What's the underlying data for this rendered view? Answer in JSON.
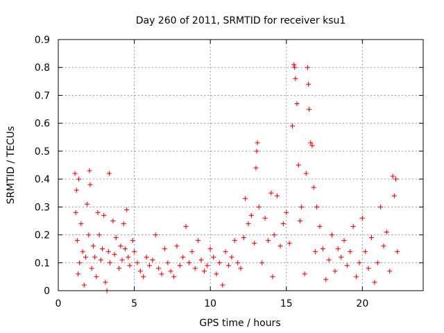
{
  "chart_data": {
    "type": "scatter",
    "title": "Day 260 of 2011, SRMTID for receiver ksu1",
    "xlabel": "GPS time / hours",
    "ylabel": "SRMTID / TECUs",
    "xlim": [
      0,
      24
    ],
    "ylim": [
      0,
      0.9
    ],
    "xticks": [
      0,
      5,
      10,
      15,
      20
    ],
    "yticks": [
      0,
      0.1,
      0.2,
      0.3,
      0.4,
      0.5,
      0.6,
      0.7,
      0.8,
      0.9
    ],
    "xtick_labels": [
      "0",
      "5",
      "10",
      "15",
      "20"
    ],
    "ytick_labels": [
      "0",
      "0.1",
      "0.2",
      "0.3",
      "0.4",
      "0.5",
      "0.6",
      "0.7",
      "0.8",
      "0.9"
    ],
    "grid": true,
    "marker": "+",
    "marker_color": "#ff0000",
    "series": [
      {
        "name": "SRMTID",
        "points": [
          [
            1.1,
            0.42
          ],
          [
            1.15,
            0.28
          ],
          [
            1.2,
            0.36
          ],
          [
            1.25,
            0.18
          ],
          [
            1.3,
            0.06
          ],
          [
            1.35,
            0.4
          ],
          [
            1.4,
            0.1
          ],
          [
            1.5,
            0.24
          ],
          [
            1.6,
            0.14
          ],
          [
            1.7,
            0.02
          ],
          [
            1.8,
            0.12
          ],
          [
            1.9,
            0.31
          ],
          [
            2.0,
            0.2
          ],
          [
            2.05,
            0.43
          ],
          [
            2.1,
            0.38
          ],
          [
            2.2,
            0.08
          ],
          [
            2.3,
            0.16
          ],
          [
            2.4,
            0.12
          ],
          [
            2.5,
            0.05
          ],
          [
            2.6,
            0.28
          ],
          [
            2.7,
            0.2
          ],
          [
            2.8,
            0.11
          ],
          [
            2.9,
            0.15
          ],
          [
            3.0,
            0.27
          ],
          [
            3.1,
            0.03
          ],
          [
            3.2,
            0.0
          ],
          [
            3.3,
            0.14
          ],
          [
            3.35,
            0.42
          ],
          [
            3.4,
            0.1
          ],
          [
            3.6,
            0.25
          ],
          [
            3.7,
            0.13
          ],
          [
            3.8,
            0.19
          ],
          [
            4.0,
            0.08
          ],
          [
            4.1,
            0.16
          ],
          [
            4.2,
            0.11
          ],
          [
            4.3,
            0.24
          ],
          [
            4.4,
            0.15
          ],
          [
            4.5,
            0.29
          ],
          [
            4.6,
            0.12
          ],
          [
            4.7,
            0.09
          ],
          [
            4.9,
            0.18
          ],
          [
            5.0,
            0.14
          ],
          [
            5.2,
            0.1
          ],
          [
            5.4,
            0.07
          ],
          [
            5.6,
            0.05
          ],
          [
            5.8,
            0.12
          ],
          [
            6.0,
            0.09
          ],
          [
            6.2,
            0.11
          ],
          [
            6.4,
            0.2
          ],
          [
            6.6,
            0.08
          ],
          [
            6.8,
            0.06
          ],
          [
            7.0,
            0.15
          ],
          [
            7.2,
            0.1
          ],
          [
            7.4,
            0.07
          ],
          [
            7.6,
            0.05
          ],
          [
            7.8,
            0.16
          ],
          [
            8.0,
            0.09
          ],
          [
            8.2,
            0.12
          ],
          [
            8.4,
            0.23
          ],
          [
            8.6,
            0.1
          ],
          [
            8.8,
            0.14
          ],
          [
            9.0,
            0.08
          ],
          [
            9.2,
            0.18
          ],
          [
            9.4,
            0.11
          ],
          [
            9.6,
            0.07
          ],
          [
            9.8,
            0.09
          ],
          [
            10.0,
            0.15
          ],
          [
            10.2,
            0.12
          ],
          [
            10.4,
            0.06
          ],
          [
            10.6,
            0.1
          ],
          [
            10.8,
            0.02
          ],
          [
            11.0,
            0.14
          ],
          [
            11.2,
            0.09
          ],
          [
            11.4,
            0.12
          ],
          [
            11.6,
            0.18
          ],
          [
            11.8,
            0.1
          ],
          [
            12.0,
            0.08
          ],
          [
            12.2,
            0.19
          ],
          [
            12.3,
            0.33
          ],
          [
            12.5,
            0.24
          ],
          [
            12.7,
            0.27
          ],
          [
            12.9,
            0.17
          ],
          [
            13.0,
            0.44
          ],
          [
            13.05,
            0.5
          ],
          [
            13.1,
            0.53
          ],
          [
            13.2,
            0.3
          ],
          [
            13.4,
            0.1
          ],
          [
            13.6,
            0.26
          ],
          [
            13.8,
            0.18
          ],
          [
            14.0,
            0.35
          ],
          [
            14.1,
            0.05
          ],
          [
            14.2,
            0.2
          ],
          [
            14.4,
            0.34
          ],
          [
            14.6,
            0.16
          ],
          [
            14.8,
            0.24
          ],
          [
            15.0,
            0.28
          ],
          [
            15.2,
            0.17
          ],
          [
            15.4,
            0.59
          ],
          [
            15.5,
            0.81
          ],
          [
            15.55,
            0.8
          ],
          [
            15.6,
            0.76
          ],
          [
            15.7,
            0.67
          ],
          [
            15.8,
            0.45
          ],
          [
            15.9,
            0.25
          ],
          [
            16.0,
            0.3
          ],
          [
            16.2,
            0.06
          ],
          [
            16.3,
            0.42
          ],
          [
            16.4,
            0.8
          ],
          [
            16.45,
            0.74
          ],
          [
            16.5,
            0.65
          ],
          [
            16.6,
            0.53
          ],
          [
            16.7,
            0.52
          ],
          [
            16.8,
            0.37
          ],
          [
            16.9,
            0.14
          ],
          [
            17.0,
            0.3
          ],
          [
            17.2,
            0.23
          ],
          [
            17.4,
            0.15
          ],
          [
            17.6,
            0.04
          ],
          [
            17.8,
            0.11
          ],
          [
            18.0,
            0.2
          ],
          [
            18.2,
            0.07
          ],
          [
            18.4,
            0.15
          ],
          [
            18.6,
            0.12
          ],
          [
            18.8,
            0.18
          ],
          [
            19.0,
            0.09
          ],
          [
            19.2,
            0.14
          ],
          [
            19.4,
            0.23
          ],
          [
            19.6,
            0.05
          ],
          [
            19.8,
            0.1
          ],
          [
            20.0,
            0.26
          ],
          [
            20.2,
            0.14
          ],
          [
            20.4,
            0.08
          ],
          [
            20.6,
            0.19
          ],
          [
            20.8,
            0.03
          ],
          [
            21.0,
            0.1
          ],
          [
            21.2,
            0.3
          ],
          [
            21.4,
            0.16
          ],
          [
            21.6,
            0.21
          ],
          [
            21.8,
            0.07
          ],
          [
            22.0,
            0.41
          ],
          [
            22.1,
            0.34
          ],
          [
            22.2,
            0.4
          ],
          [
            22.3,
            0.14
          ]
        ]
      }
    ]
  }
}
